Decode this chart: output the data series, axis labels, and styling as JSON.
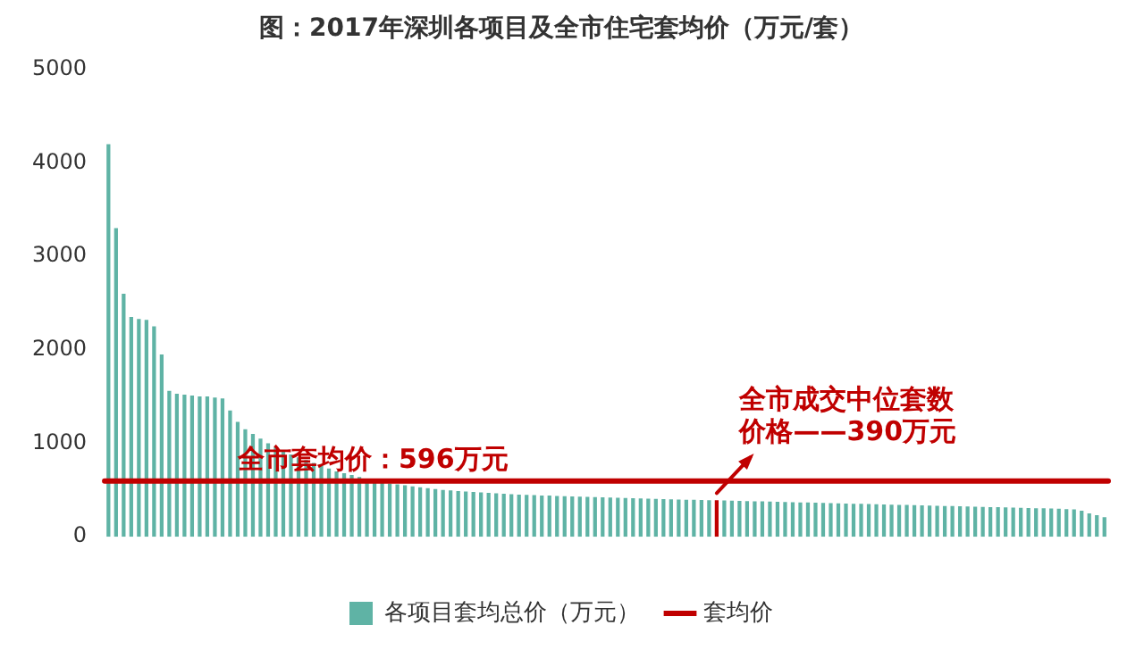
{
  "chart_data": {
    "type": "bar",
    "title": "图：2017年深圳各项目及全市住宅套均价（万元/套）",
    "categories": [
      null,
      null,
      null,
      null,
      null,
      null,
      null,
      null,
      null,
      null,
      null,
      null,
      null,
      null,
      null,
      null,
      null,
      null,
      null,
      null,
      null,
      null,
      null,
      null,
      null,
      null,
      null,
      null,
      null,
      null,
      null,
      null,
      null,
      null,
      null,
      null,
      null,
      null,
      null,
      null,
      null,
      null,
      null,
      null,
      null,
      null,
      null,
      null,
      null,
      null,
      null,
      null,
      null,
      null,
      null,
      null,
      null,
      null,
      null,
      null,
      null,
      null,
      null,
      null,
      null,
      null,
      null,
      null,
      null,
      null,
      null,
      null,
      null,
      null,
      null,
      null,
      null,
      null,
      null,
      null,
      null,
      null,
      null,
      null,
      null,
      null,
      null,
      null,
      null,
      null,
      null,
      null,
      null,
      null,
      null,
      null,
      null,
      null,
      null,
      null,
      null,
      null,
      null,
      null,
      null,
      null,
      null,
      null,
      null,
      null,
      null,
      null,
      null,
      null,
      null,
      null,
      null,
      null,
      null,
      null,
      null,
      null,
      null,
      null,
      null,
      null,
      null,
      null,
      null,
      null,
      null,
      null
    ],
    "series": [
      {
        "name": "各项目套均总价（万元）",
        "color": "#5fb3a5",
        "colors": [
          "#5fb3a5",
          "#5fb3a5",
          "#5fb3a5",
          "#5fb3a5",
          "#5fb3a5",
          "#5fb3a5",
          "#5fb3a5",
          "#5fb3a5",
          "#5fb3a5",
          "#5fb3a5",
          "#5fb3a5",
          "#5fb3a5",
          "#5fb3a5",
          "#5fb3a5",
          "#5fb3a5",
          "#5fb3a5",
          "#5fb3a5",
          "#5fb3a5",
          "#5fb3a5",
          "#5fb3a5",
          "#5fb3a5",
          "#5fb3a5",
          "#5fb3a5",
          "#5fb3a5",
          "#5fb3a5",
          "#5fb3a5",
          "#5fb3a5",
          "#5fb3a5",
          "#5fb3a5",
          "#5fb3a5",
          "#5fb3a5",
          "#5fb3a5",
          "#5fb3a5",
          "#5fb3a5",
          "#5fb3a5",
          "#5fb3a5",
          "#5fb3a5",
          "#5fb3a5",
          "#5fb3a5",
          "#5fb3a5",
          "#5fb3a5",
          "#5fb3a5",
          "#5fb3a5",
          "#5fb3a5",
          "#5fb3a5",
          "#5fb3a5",
          "#5fb3a5",
          "#5fb3a5",
          "#5fb3a5",
          "#5fb3a5",
          "#5fb3a5",
          "#5fb3a5",
          "#5fb3a5",
          "#5fb3a5",
          "#5fb3a5",
          "#5fb3a5",
          "#5fb3a5",
          "#5fb3a5",
          "#5fb3a5",
          "#5fb3a5",
          "#5fb3a5",
          "#5fb3a5",
          "#5fb3a5",
          "#5fb3a5",
          "#5fb3a5",
          "#5fb3a5",
          "#5fb3a5",
          "#5fb3a5",
          "#5fb3a5",
          "#5fb3a5",
          "#5fb3a5",
          "#5fb3a5",
          "#5fb3a5",
          "#5fb3a5",
          "#5fb3a5",
          "#5fb3a5",
          "#5fb3a5",
          "#5fb3a5",
          "#5fb3a5",
          "#5fb3a5",
          "#c00000",
          "#5fb3a5",
          "#5fb3a5",
          "#5fb3a5",
          "#5fb3a5",
          "#5fb3a5",
          "#5fb3a5",
          "#5fb3a5",
          "#5fb3a5",
          "#5fb3a5",
          "#5fb3a5",
          "#5fb3a5",
          "#5fb3a5",
          "#5fb3a5",
          "#5fb3a5",
          "#5fb3a5",
          "#5fb3a5",
          "#5fb3a5",
          "#5fb3a5",
          "#5fb3a5",
          "#5fb3a5",
          "#5fb3a5",
          "#5fb3a5",
          "#5fb3a5",
          "#5fb3a5",
          "#5fb3a5",
          "#5fb3a5",
          "#5fb3a5",
          "#5fb3a5",
          "#5fb3a5",
          "#5fb3a5",
          "#5fb3a5",
          "#5fb3a5",
          "#5fb3a5",
          "#5fb3a5",
          "#5fb3a5",
          "#5fb3a5",
          "#5fb3a5",
          "#5fb3a5",
          "#5fb3a5",
          "#5fb3a5",
          "#5fb3a5",
          "#5fb3a5",
          "#5fb3a5",
          "#5fb3a5",
          "#5fb3a5",
          "#5fb3a5",
          "#5fb3a5",
          "#5fb3a5",
          "#5fb3a5",
          "#5fb3a5",
          "#5fb3a5"
        ],
        "values": [
          4200,
          3300,
          2600,
          2350,
          2330,
          2320,
          2250,
          1950,
          1560,
          1530,
          1520,
          1510,
          1500,
          1500,
          1490,
          1480,
          1350,
          1230,
          1150,
          1100,
          1050,
          1000,
          960,
          920,
          880,
          850,
          820,
          790,
          760,
          730,
          700,
          680,
          660,
          640,
          620,
          600,
          585,
          570,
          560,
          550,
          540,
          530,
          520,
          510,
          500,
          495,
          490,
          485,
          480,
          475,
          470,
          465,
          460,
          455,
          450,
          448,
          445,
          442,
          440,
          437,
          435,
          432,
          430,
          428,
          425,
          422,
          420,
          418,
          415,
          412,
          410,
          408,
          405,
          402,
          400,
          398,
          397,
          395,
          393,
          392,
          390,
          388,
          386,
          384,
          382,
          380,
          378,
          376,
          374,
          372,
          370,
          368,
          366,
          364,
          362,
          360,
          358,
          356,
          354,
          352,
          350,
          348,
          346,
          344,
          342,
          340,
          338,
          336,
          334,
          332,
          330,
          328,
          326,
          324,
          322,
          320,
          318,
          316,
          314,
          312,
          310,
          308,
          306,
          304,
          302,
          300,
          296,
          292,
          280,
          250,
          230,
          210
        ]
      }
    ],
    "ref_lines": [
      {
        "axis": "y",
        "value": 596,
        "label": "套均价",
        "color": "#c00000"
      }
    ],
    "ylim": [
      0,
      5000
    ],
    "yticks": [
      0,
      1000,
      2000,
      3000,
      4000,
      5000
    ],
    "grid": false,
    "legend": "bottom",
    "annotations": [
      {
        "text": "全市套均价：596万元",
        "y": 596
      },
      {
        "text": "全市成交中位套数价格——390万元",
        "y": 390
      }
    ]
  }
}
